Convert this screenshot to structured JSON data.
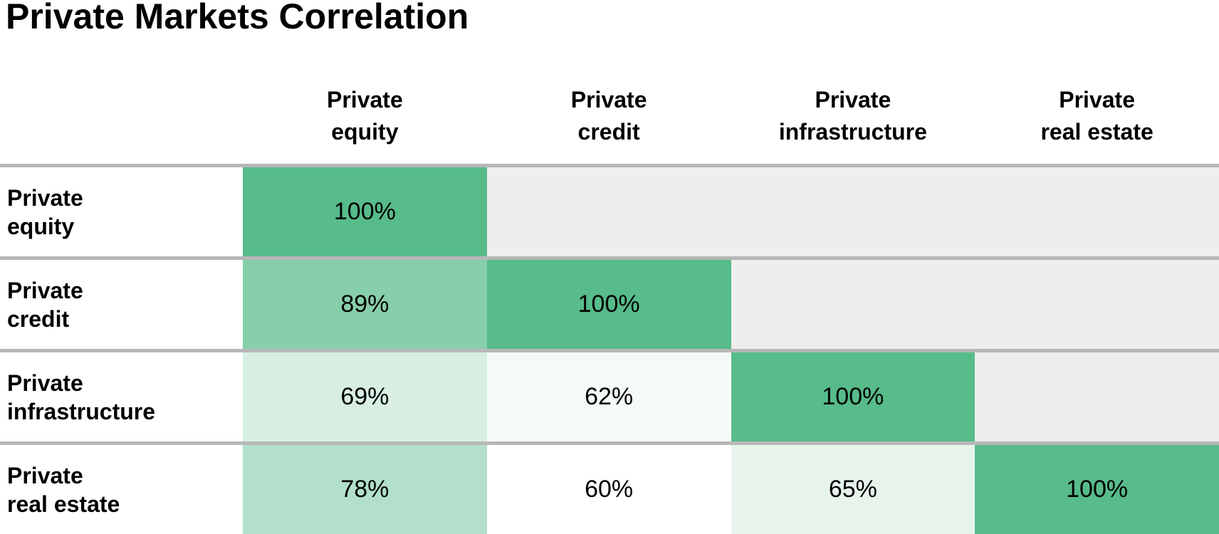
{
  "title": "Private Markets Correlation",
  "headers": {
    "cols": [
      "Private\nequity",
      "Private\ncredit",
      "Private\ninfrastructure",
      "Private\nreal estate"
    ],
    "rows": [
      "Private\nequity",
      "Private\ncredit",
      "Private\ninfrastructure",
      "Private\nreal estate"
    ]
  },
  "colors": {
    "diagonal_green": "#57bb8a",
    "empty_cell_gray": "#eeeeee",
    "row_divider_gray": "#b7b7b7",
    "text_black": "#000000",
    "scale_min_white": "#ffffff"
  },
  "chart_data": {
    "type": "heatmap",
    "title": "Private Markets Correlation",
    "categories": [
      "Private equity",
      "Private credit",
      "Private infrastructure",
      "Private real estate"
    ],
    "layout": "lower-triangle",
    "value_format": "percent",
    "matrix_percent": [
      [
        100,
        null,
        null,
        null
      ],
      [
        89,
        100,
        null,
        null
      ],
      [
        69,
        62,
        100,
        null
      ],
      [
        78,
        60,
        65,
        100
      ]
    ],
    "color_scale": {
      "min_value": 60,
      "max_value": 100,
      "min_color": "#ffffff",
      "max_color": "#57bb8a",
      "empty_color": "#eeeeee"
    }
  },
  "cells": {
    "r0c0": {
      "text": "100%",
      "bg": "#57bb8a"
    },
    "r0c1": {
      "text": "",
      "bg": "#eeeeee"
    },
    "r0c2": {
      "text": "",
      "bg": "#eeeeee"
    },
    "r0c3": {
      "text": "",
      "bg": "#eeeeee"
    },
    "r1c0": {
      "text": "89%",
      "bg": "#87ceaa"
    },
    "r1c1": {
      "text": "100%",
      "bg": "#57bb8a"
    },
    "r1c2": {
      "text": "",
      "bg": "#eeeeee"
    },
    "r1c3": {
      "text": "",
      "bg": "#eeeeee"
    },
    "r2c0": {
      "text": "69%",
      "bg": "#d8eee3"
    },
    "r2c1": {
      "text": "62%",
      "bg": "#f4faf7"
    },
    "r2c2": {
      "text": "100%",
      "bg": "#57bb8a"
    },
    "r2c3": {
      "text": "",
      "bg": "#eeeeee"
    },
    "r3c0": {
      "text": "78%",
      "bg": "#b2e0ca"
    },
    "r3c1": {
      "text": "60%",
      "bg": "#ffffff"
    },
    "r3c2": {
      "text": "65%",
      "bg": "#e7f4ec"
    },
    "r3c3": {
      "text": "100%",
      "bg": "#57bb8a"
    }
  }
}
